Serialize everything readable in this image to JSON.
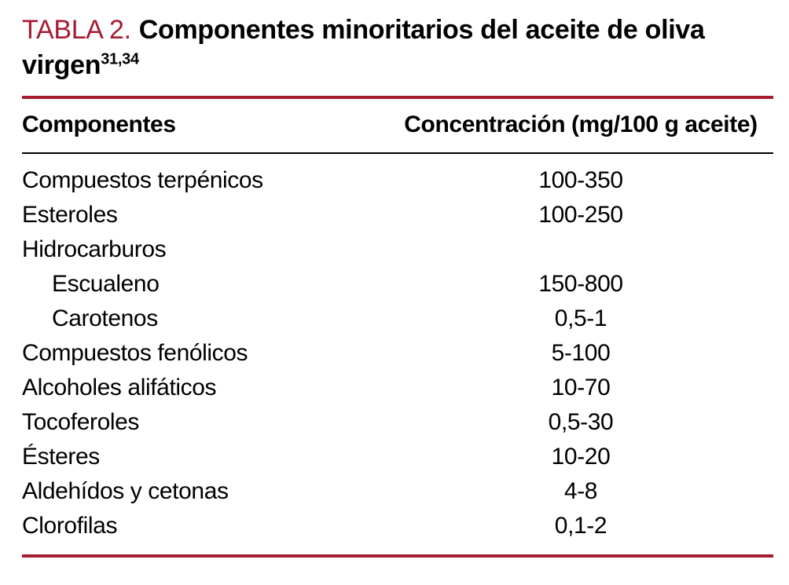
{
  "title": {
    "label": "TABLA 2.",
    "text": "Componentes minoritarios del aceite de oliva virgen",
    "superscript": "31,34"
  },
  "table": {
    "headers": [
      "Componentes",
      "Concentración (mg/100 g aceite)"
    ],
    "rows": [
      {
        "component": "Compuestos terpénicos",
        "value": "100-350"
      },
      {
        "component": "Esteroles",
        "value": "100-250"
      },
      {
        "component": "Hidrocarburos",
        "value": ""
      },
      {
        "component": "Escualeno",
        "value": "150-800"
      },
      {
        "component": "Carotenos",
        "value": "0,5-1"
      },
      {
        "component": "Compuestos fenólicos",
        "value": "5-100"
      },
      {
        "component": "Alcoholes alifáticos",
        "value": "10-70"
      },
      {
        "component": "Tocoferoles",
        "value": "0,5-30"
      },
      {
        "component": "Ésteres",
        "value": "10-20"
      },
      {
        "component": "Aldehídos y cetonas",
        "value": "4-8"
      },
      {
        "component": "Clorofilas",
        "value": "0,1-2"
      }
    ]
  },
  "colors": {
    "accent": "#A51C30",
    "text": "#000000",
    "background": "#FFFFFF"
  }
}
